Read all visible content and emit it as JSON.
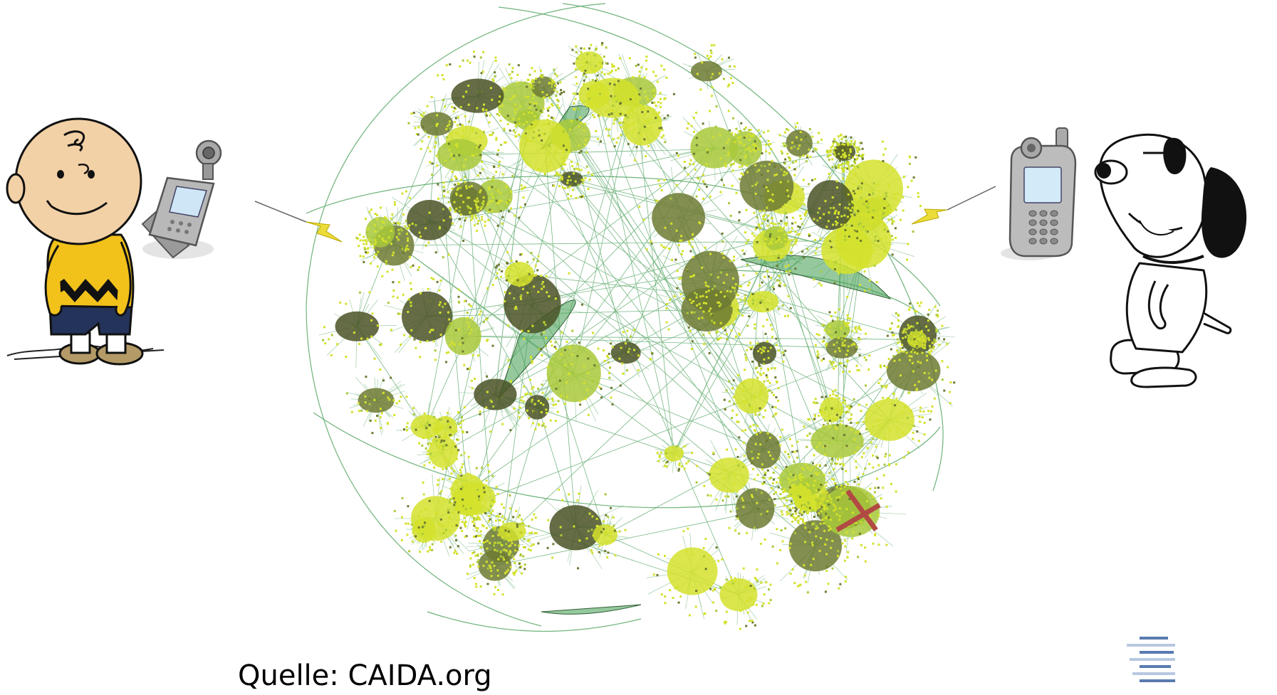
{
  "caption": "Quelle: CAIDA.org",
  "icons": {
    "left_person": "charlie-brown-cartoon",
    "left_phone": "flip-phone-with-camera",
    "right_phone": "mobile-phone-with-camera",
    "right_person": "snoopy-cartoon",
    "link_signal": "lightning-bolt",
    "broken_link": "red-x-mark",
    "logo": "horizontal-bars-logo"
  },
  "colors": {
    "node_yellow": "#d4e22c",
    "node_lime": "#a9c93a",
    "node_olive": "#6d7a32",
    "node_dark": "#4a5226",
    "edge_green": "#3f9a4f",
    "broken_x": "#b24a44",
    "logo_blue": "#5a7ab0",
    "shirt_yellow": "#f2c21b",
    "signal_yellow": "#ecdc3a"
  }
}
